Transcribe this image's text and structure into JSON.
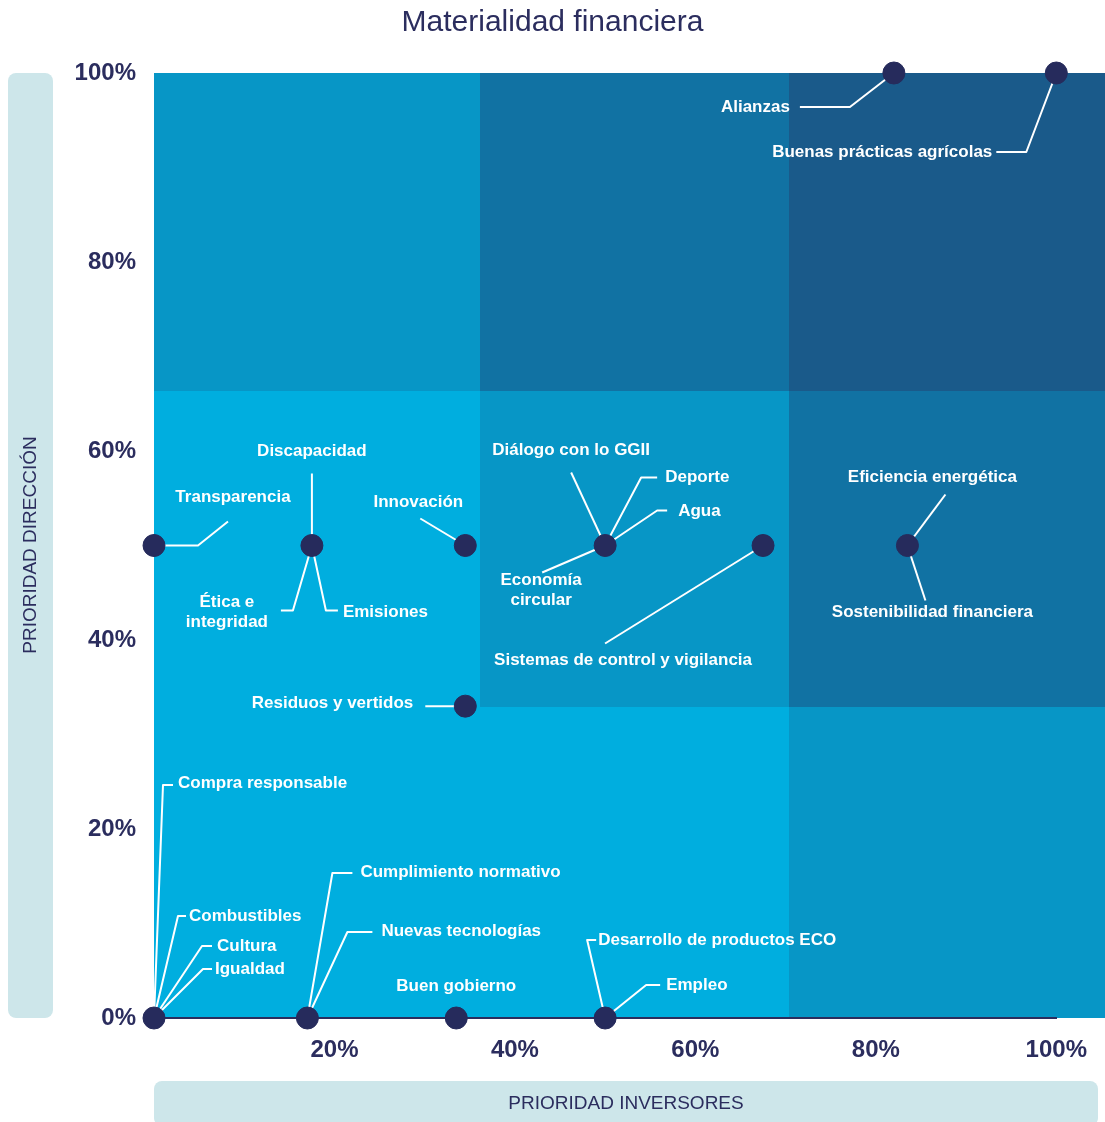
{
  "chart_data": {
    "type": "scatter",
    "title": "Materialidad financiera",
    "xlabel": "PRIORIDAD INVERSORES",
    "ylabel": "PRIORIDAD DIRECCIÓN",
    "xlim": [
      0,
      100
    ],
    "ylim": [
      0,
      100
    ],
    "xticks": [
      {
        "value": 20,
        "label": "20%"
      },
      {
        "value": 40,
        "label": "40%"
      },
      {
        "value": 60,
        "label": "60%"
      },
      {
        "value": 80,
        "label": "80%"
      },
      {
        "value": 100,
        "label": "100%"
      }
    ],
    "yticks": [
      {
        "value": 0,
        "label": "0%"
      },
      {
        "value": 20,
        "label": "20%"
      },
      {
        "value": 40,
        "label": "40%"
      },
      {
        "value": 60,
        "label": "60%"
      },
      {
        "value": 80,
        "label": "80%"
      },
      {
        "value": 100,
        "label": "100%"
      }
    ],
    "grid": false,
    "legend": false,
    "marker": "circle",
    "series": [
      {
        "color": "#262b5c",
        "x": [
          82,
          100,
          0,
          17.5,
          34.5,
          50,
          67.5,
          83.5,
          34.5,
          0,
          17,
          33.5,
          50
        ],
        "values": [
          100,
          100,
          50,
          50,
          50,
          50,
          50,
          50,
          33,
          0,
          0,
          0,
          0
        ]
      }
    ],
    "annotations": [
      {
        "text": "Alianzas",
        "x": 82,
        "y": 100
      },
      {
        "text": "Buenas prácticas agrícolas",
        "x": 100,
        "y": 100
      },
      {
        "text": "Transparencia",
        "x": 0,
        "y": 50
      },
      {
        "text": "Discapacidad",
        "x": 17.5,
        "y": 50
      },
      {
        "text": "Ética e integridad",
        "x": 17.5,
        "y": 50
      },
      {
        "text": "Emisiones",
        "x": 17.5,
        "y": 50
      },
      {
        "text": "Innovación",
        "x": 34.5,
        "y": 50
      },
      {
        "text": "Residuos y vertidos",
        "x": 34.5,
        "y": 33
      },
      {
        "text": "Diálogo con lo GGII",
        "x": 50,
        "y": 50
      },
      {
        "text": "Deporte",
        "x": 50,
        "y": 50
      },
      {
        "text": "Agua",
        "x": 50,
        "y": 50
      },
      {
        "text": "Economía circular",
        "x": 50,
        "y": 50
      },
      {
        "text": "Sistemas de control y vigilancia",
        "x": 67.5,
        "y": 50
      },
      {
        "text": "Eficiencia energética",
        "x": 83.5,
        "y": 50
      },
      {
        "text": "Sostenibilidad financiera",
        "x": 83.5,
        "y": 50
      },
      {
        "text": "Compra responsable",
        "x": 0,
        "y": 0
      },
      {
        "text": "Combustibles",
        "x": 0,
        "y": 0
      },
      {
        "text": "Cultura",
        "x": 0,
        "y": 0
      },
      {
        "text": "Igualdad",
        "x": 0,
        "y": 0
      },
      {
        "text": "Cumplimiento normativo",
        "x": 17,
        "y": 0
      },
      {
        "text": "Nuevas tecnologías",
        "x": 17,
        "y": 0
      },
      {
        "text": "Buen gobierno",
        "x": 33.5,
        "y": 0
      },
      {
        "text": "Desarrollo de productos ECO",
        "x": 50,
        "y": 0
      },
      {
        "text": "Empleo",
        "x": 50,
        "y": 0
      }
    ]
  }
}
